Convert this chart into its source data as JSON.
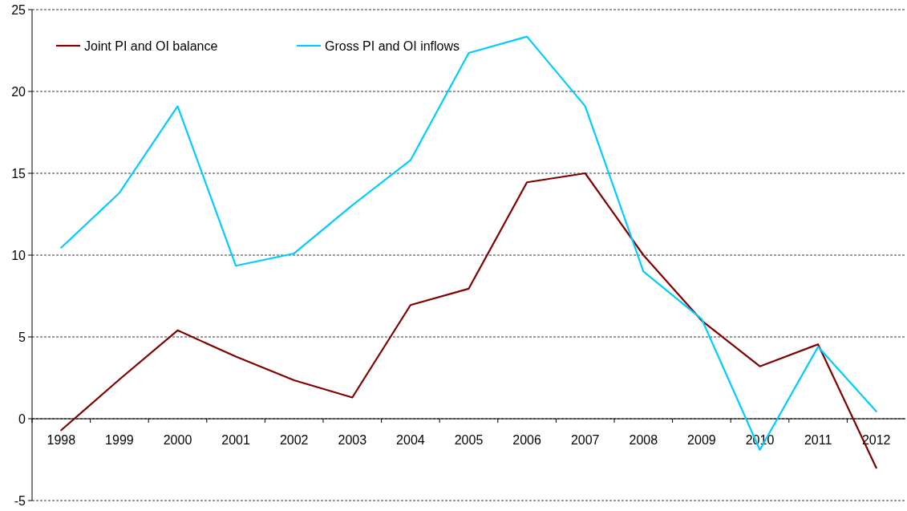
{
  "chart_data": {
    "type": "line",
    "categories": [
      "1998",
      "1999",
      "2000",
      "2001",
      "2002",
      "2003",
      "2004",
      "2005",
      "2006",
      "2007",
      "2008",
      "2009",
      "2010",
      "2011",
      "2012"
    ],
    "series": [
      {
        "name": "Joint PI and OI balance",
        "color": "#800000",
        "values": [
          -0.7,
          2.4,
          5.4,
          3.8,
          2.35,
          1.3,
          6.95,
          7.95,
          14.45,
          15.0,
          10.0,
          6.0,
          3.2,
          4.55,
          -3.0
        ]
      },
      {
        "name": "Gross PI and OI inflows",
        "color": "#00ccff",
        "values": [
          10.45,
          13.8,
          19.1,
          9.35,
          10.1,
          13.05,
          15.8,
          22.35,
          23.35,
          19.1,
          9.0,
          6.1,
          -1.9,
          4.4,
          0.45
        ]
      }
    ],
    "ylim": [
      -5,
      25
    ],
    "yticks": [
      -5,
      0,
      5,
      10,
      15,
      20,
      25
    ],
    "grid": "y",
    "legend": "top left",
    "marker": "none",
    "line_style": "solid"
  }
}
